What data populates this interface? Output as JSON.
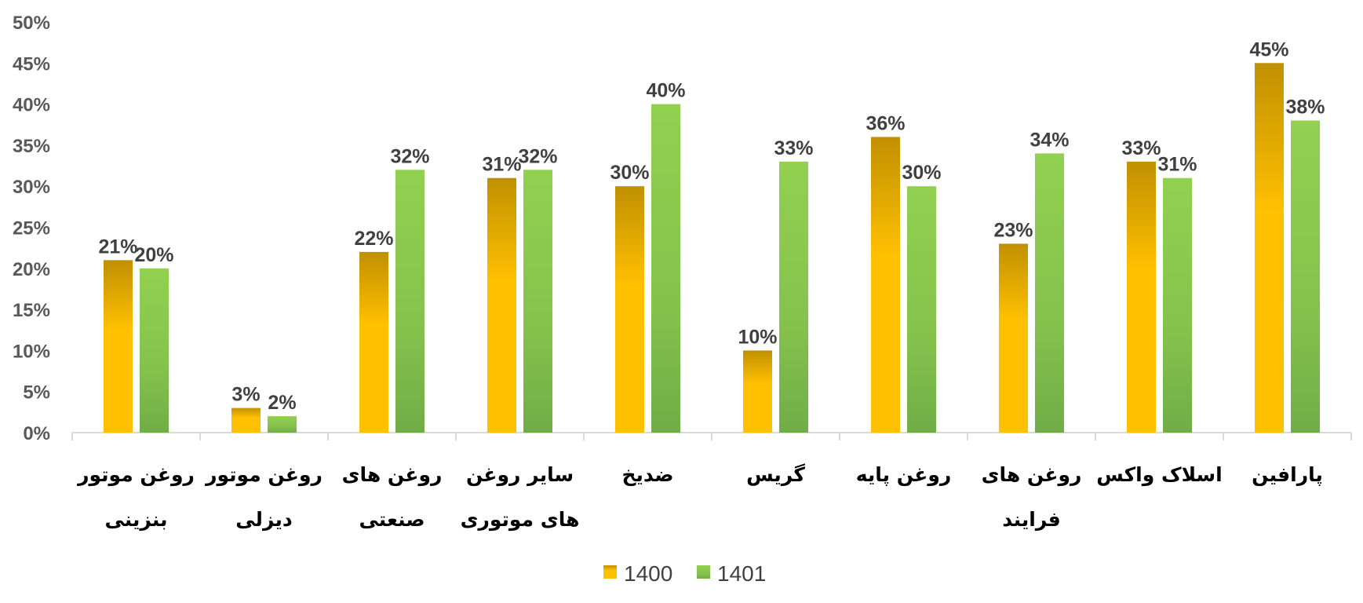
{
  "chart_data": {
    "type": "bar",
    "categories": [
      [
        "روغن موتور",
        "بنزینی"
      ],
      [
        "روغن موتور",
        "دیزلی"
      ],
      [
        "روغن های",
        "صنعتی"
      ],
      [
        "سایر روغن",
        "های موتوری"
      ],
      [
        "ضدیخ"
      ],
      [
        "گریس"
      ],
      [
        "روغن پایه"
      ],
      [
        "روغن های",
        "فرایند"
      ],
      [
        "اسلاک واکس"
      ],
      [
        "پارافین"
      ]
    ],
    "series": [
      {
        "name": "1400",
        "values": [
          21,
          3,
          22,
          31,
          30,
          10,
          36,
          23,
          33,
          45
        ],
        "labels": [
          "21%",
          "3%",
          "22%",
          "31%",
          "30%",
          "10%",
          "36%",
          "23%",
          "33%",
          "45%"
        ],
        "color": "#ffc000",
        "color_top": "#c09000"
      },
      {
        "name": "1401",
        "values": [
          20,
          2,
          32,
          32,
          40,
          33,
          30,
          34,
          31,
          38
        ],
        "labels": [
          "20%",
          "2%",
          "32%",
          "32%",
          "40%",
          "33%",
          "30%",
          "34%",
          "31%",
          "38%"
        ],
        "color": "#92d050",
        "color_bottom": "#70ad47"
      }
    ],
    "yticks": [
      "0%",
      "5%",
      "10%",
      "15%",
      "20%",
      "25%",
      "30%",
      "35%",
      "40%",
      "45%",
      "50%"
    ],
    "ylim": [
      0,
      50
    ],
    "title": "",
    "xlabel": "",
    "ylabel": "",
    "grid": false,
    "legend_position": "bottom"
  }
}
